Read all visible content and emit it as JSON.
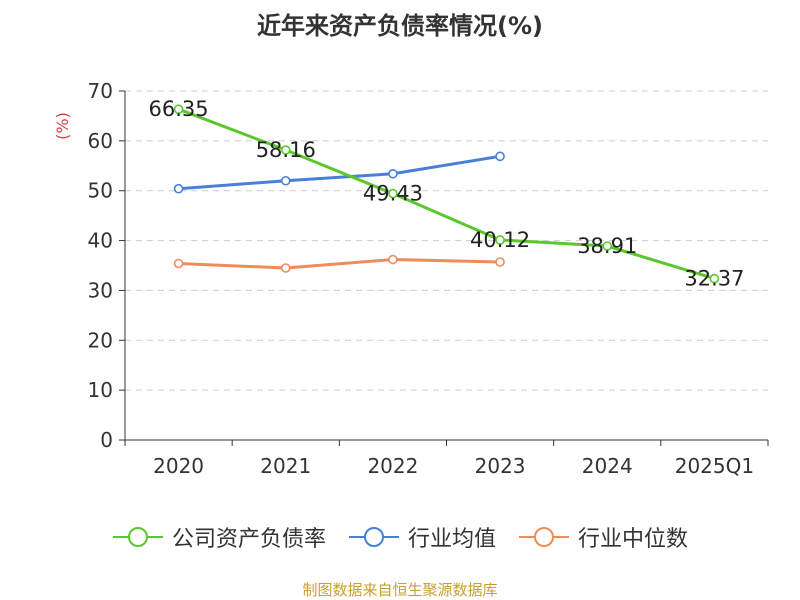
{
  "footer": "制图数据来自恒生聚源数据库",
  "chart_data": {
    "type": "line",
    "title": "近年来资产负债率情况(%)",
    "ylabel": "(%)",
    "xlabel": "",
    "categories": [
      "2020",
      "2021",
      "2022",
      "2023",
      "2024",
      "2025Q1"
    ],
    "ylim": [
      0,
      70
    ],
    "yticks": [
      0,
      10,
      20,
      30,
      40,
      50,
      60,
      70
    ],
    "grid": true,
    "legend_position": "bottom",
    "series": [
      {
        "name": "公司资产负债率",
        "color": "#5cc72d",
        "values": [
          66.35,
          58.16,
          49.43,
          40.12,
          38.91,
          32.37
        ],
        "labels": [
          "66.35",
          "58.16",
          "49.43",
          "40.12",
          "38.91",
          "32.37"
        ]
      },
      {
        "name": "行业均值",
        "color": "#4a7fd8",
        "values": [
          50.4,
          52.0,
          53.4,
          56.9,
          null,
          null
        ]
      },
      {
        "name": "行业中位数",
        "color": "#f08c5a",
        "values": [
          35.4,
          34.5,
          36.2,
          35.7,
          null,
          null
        ]
      }
    ]
  }
}
